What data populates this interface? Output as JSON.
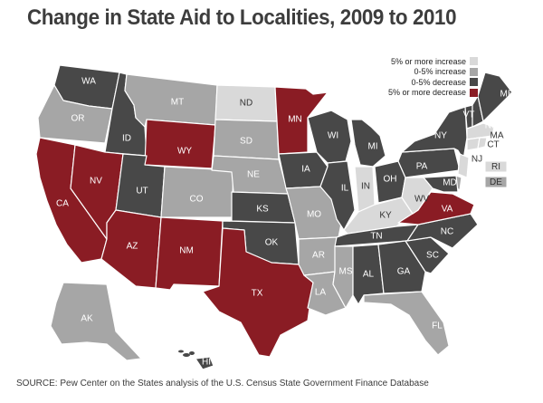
{
  "title": "Change in State Aid to Localities, 2009 to 2010",
  "source": "SOURCE: Pew Center on the States analysis of the U.S. Census State Government Finance Database",
  "legend": [
    {
      "key": "inc5",
      "label": "5% or more increase",
      "color": "#d9d9d9"
    },
    {
      "key": "inc0",
      "label": "0-5% increase",
      "color": "#a6a6a6"
    },
    {
      "key": "dec0",
      "label": "0-5% decrease",
      "color": "#484848"
    },
    {
      "key": "dec5",
      "label": "5% or more decrease",
      "color": "#8a1c24"
    }
  ],
  "states": [
    {
      "code": "WA",
      "category": "dec0"
    },
    {
      "code": "OR",
      "category": "inc0"
    },
    {
      "code": "CA",
      "category": "dec5"
    },
    {
      "code": "ID",
      "category": "dec0"
    },
    {
      "code": "NV",
      "category": "dec5"
    },
    {
      "code": "MT",
      "category": "inc0"
    },
    {
      "code": "WY",
      "category": "dec5"
    },
    {
      "code": "UT",
      "category": "dec0"
    },
    {
      "code": "AZ",
      "category": "dec5"
    },
    {
      "code": "CO",
      "category": "inc0"
    },
    {
      "code": "NM",
      "category": "dec5"
    },
    {
      "code": "ND",
      "category": "inc5"
    },
    {
      "code": "SD",
      "category": "inc0"
    },
    {
      "code": "NE",
      "category": "inc0"
    },
    {
      "code": "KS",
      "category": "dec0"
    },
    {
      "code": "OK",
      "category": "dec0"
    },
    {
      "code": "TX",
      "category": "dec5"
    },
    {
      "code": "MN",
      "category": "dec5"
    },
    {
      "code": "IA",
      "category": "dec0"
    },
    {
      "code": "MO",
      "category": "inc0"
    },
    {
      "code": "AR",
      "category": "inc0"
    },
    {
      "code": "LA",
      "category": "inc0"
    },
    {
      "code": "WI",
      "category": "dec0"
    },
    {
      "code": "IL",
      "category": "dec0"
    },
    {
      "code": "MI",
      "category": "dec0"
    },
    {
      "code": "IN",
      "category": "inc5"
    },
    {
      "code": "OH",
      "category": "dec0"
    },
    {
      "code": "KY",
      "category": "inc5"
    },
    {
      "code": "TN",
      "category": "dec0"
    },
    {
      "code": "MS",
      "category": "inc0"
    },
    {
      "code": "AL",
      "category": "dec0"
    },
    {
      "code": "GA",
      "category": "dec0"
    },
    {
      "code": "FL",
      "category": "inc0"
    },
    {
      "code": "SC",
      "category": "dec0"
    },
    {
      "code": "NC",
      "category": "dec0"
    },
    {
      "code": "VA",
      "category": "dec5"
    },
    {
      "code": "WV",
      "category": "inc5"
    },
    {
      "code": "PA",
      "category": "dec0"
    },
    {
      "code": "NY",
      "category": "dec0"
    },
    {
      "code": "VT",
      "category": "dec0"
    },
    {
      "code": "NH",
      "category": "dec0"
    },
    {
      "code": "ME",
      "category": "dec0"
    },
    {
      "code": "MA",
      "category": "inc5"
    },
    {
      "code": "CT",
      "category": "inc5"
    },
    {
      "code": "RI",
      "category": "inc5"
    },
    {
      "code": "NJ",
      "category": "inc5"
    },
    {
      "code": "DE",
      "category": "inc0"
    },
    {
      "code": "MD",
      "category": "dec0"
    },
    {
      "code": "AK",
      "category": "inc0"
    },
    {
      "code": "HI",
      "category": "dec0"
    }
  ]
}
